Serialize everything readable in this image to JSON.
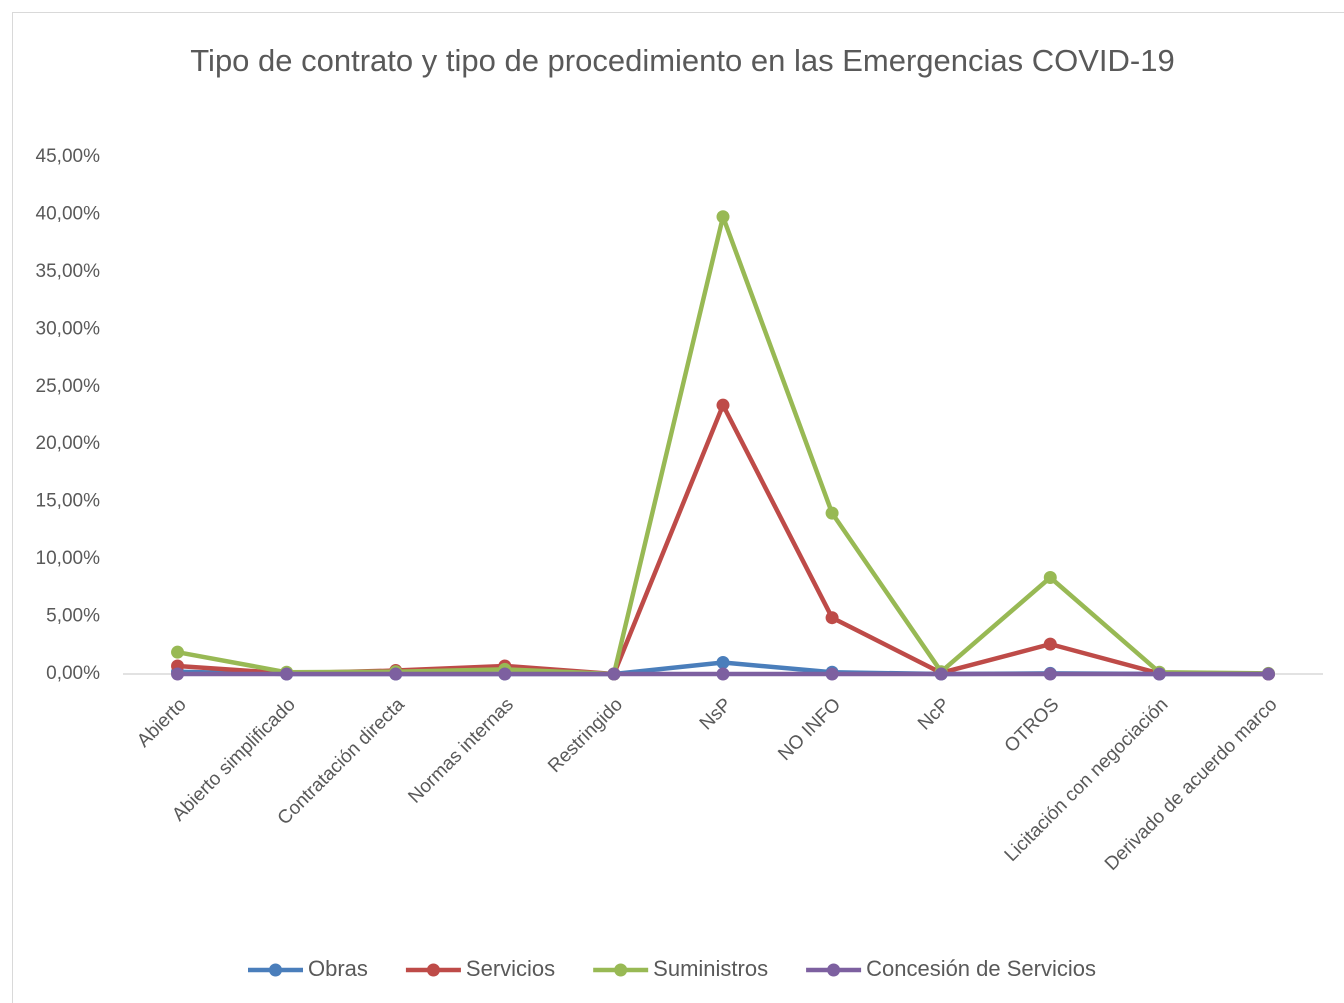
{
  "chart_data": {
    "type": "line",
    "title": "Tipo de contrato y tipo de procedimiento en las Emergencias COVID-19",
    "categories": [
      "Abierto",
      "Abierto simplificado",
      "Contratación directa",
      "Normas internas",
      "Restringido",
      "NsP",
      "NO INFO",
      "NcP",
      "OTROS",
      "Licitación con negociación",
      "Derivado de acuerdo marco"
    ],
    "series": [
      {
        "name": "Obras",
        "color": "#4a7ebb",
        "values": [
          0.2,
          0,
          0,
          0,
          0,
          1.0,
          0.15,
          0,
          0.05,
          0,
          0
        ]
      },
      {
        "name": "Servicios",
        "color": "#be4b48",
        "values": [
          0.7,
          0.05,
          0.3,
          0.7,
          0,
          23.4,
          4.9,
          0.1,
          2.6,
          0.05,
          0
        ]
      },
      {
        "name": "Suministros",
        "color": "#98b954",
        "values": [
          1.9,
          0.15,
          0.2,
          0.4,
          0,
          39.8,
          14.0,
          0.2,
          8.4,
          0.15,
          0.05
        ]
      },
      {
        "name": "Concesión de Servicios",
        "color": "#7d60a0",
        "values": [
          0,
          0,
          0,
          0,
          0,
          0,
          0,
          0,
          0,
          0,
          0
        ]
      }
    ],
    "ylim": [
      0,
      45
    ],
    "yticks": [
      {
        "value": 0,
        "label": "0,00%"
      },
      {
        "value": 5,
        "label": "5,00%"
      },
      {
        "value": 10,
        "label": "10,00%"
      },
      {
        "value": 15,
        "label": "15,00%"
      },
      {
        "value": 20,
        "label": "20,00%"
      },
      {
        "value": 25,
        "label": "25,00%"
      },
      {
        "value": 30,
        "label": "30,00%"
      },
      {
        "value": 35,
        "label": "35,00%"
      },
      {
        "value": 40,
        "label": "40,00%"
      },
      {
        "value": 45,
        "label": "45,00%"
      }
    ],
    "grid": false,
    "legend": "bottom"
  }
}
